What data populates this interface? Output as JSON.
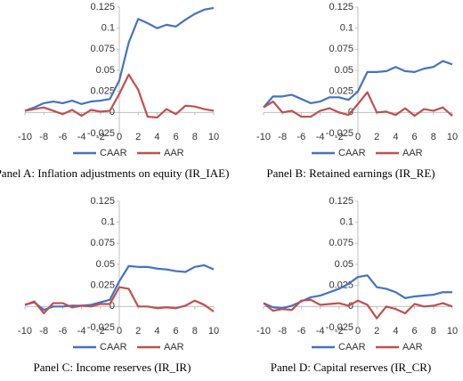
{
  "chart_data": [
    {
      "type": "line",
      "caption": "Panel A: Inflation adjustments on equity (IR_IAE)",
      "x": [
        -10,
        -9,
        -8,
        -7,
        -6,
        -5,
        -4,
        -3,
        -2,
        -1,
        0,
        1,
        2,
        3,
        4,
        5,
        6,
        7,
        8,
        9,
        10
      ],
      "series": [
        {
          "name": "CAAR",
          "color": "#4472c4",
          "values": [
            0.002,
            0.006,
            0.011,
            0.013,
            0.011,
            0.014,
            0.01,
            0.013,
            0.014,
            0.016,
            0.038,
            0.083,
            0.111,
            0.106,
            0.1,
            0.104,
            0.102,
            0.11,
            0.117,
            0.122,
            0.124
          ]
        },
        {
          "name": "AAR",
          "color": "#c0504d",
          "values": [
            0.002,
            0.004,
            0.006,
            0.002,
            -0.002,
            0.003,
            -0.004,
            0.003,
            0.001,
            0.002,
            0.022,
            0.045,
            0.027,
            -0.005,
            -0.006,
            0.004,
            -0.002,
            0.008,
            0.007,
            0.004,
            0.002
          ]
        }
      ],
      "xlim": [
        -10,
        10
      ],
      "xticks": [
        -10,
        -8,
        -6,
        -4,
        -2,
        0,
        2,
        4,
        6,
        8,
        10
      ],
      "ylim": [
        -0.025,
        0.125
      ],
      "yticks": [
        -0.025,
        0,
        0.025,
        0.05,
        0.075,
        0.1,
        0.125
      ]
    },
    {
      "type": "line",
      "caption": "Panel B: Retained earnings (IR_RE)",
      "x": [
        -10,
        -9,
        -8,
        -7,
        -6,
        -5,
        -4,
        -3,
        -2,
        -1,
        0,
        1,
        2,
        3,
        4,
        5,
        6,
        7,
        8,
        9,
        10
      ],
      "series": [
        {
          "name": "CAAR",
          "color": "#4472c4",
          "values": [
            0.006,
            0.019,
            0.019,
            0.021,
            0.016,
            0.011,
            0.013,
            0.018,
            0.018,
            0.015,
            0.025,
            0.048,
            0.048,
            0.049,
            0.054,
            0.049,
            0.048,
            0.052,
            0.054,
            0.061,
            0.057
          ]
        },
        {
          "name": "AAR",
          "color": "#c0504d",
          "values": [
            0.006,
            0.013,
            0.0,
            0.002,
            -0.005,
            -0.005,
            0.002,
            0.005,
            0.0,
            -0.003,
            0.01,
            0.024,
            0.0,
            0.001,
            -0.003,
            0.005,
            -0.004,
            0.004,
            0.002,
            0.006,
            -0.004
          ]
        }
      ],
      "xlim": [
        -10,
        10
      ],
      "xticks": [
        -10,
        -8,
        -6,
        -4,
        -2,
        0,
        2,
        4,
        6,
        8,
        10
      ],
      "ylim": [
        -0.025,
        0.125
      ],
      "yticks": [
        -0.025,
        0,
        0.025,
        0.05,
        0.075,
        0.1,
        0.125
      ]
    },
    {
      "type": "line",
      "caption": "Panel C: Income reserves (IR_IR)",
      "x": [
        -10,
        -9,
        -8,
        -7,
        -6,
        -5,
        -4,
        -3,
        -2,
        -1,
        0,
        1,
        2,
        3,
        4,
        5,
        6,
        7,
        8,
        9,
        10
      ],
      "series": [
        {
          "name": "CAAR",
          "color": "#4472c4",
          "values": [
            0.002,
            0.005,
            -0.004,
            0.0,
            0.0,
            0.001,
            0.001,
            0.002,
            0.005,
            0.008,
            0.03,
            0.048,
            0.047,
            0.047,
            0.045,
            0.044,
            0.042,
            0.041,
            0.047,
            0.049,
            0.044
          ]
        },
        {
          "name": "AAR",
          "color": "#c0504d",
          "values": [
            0.002,
            0.006,
            -0.008,
            0.004,
            0.004,
            -0.001,
            0.001,
            0.0,
            0.003,
            0.003,
            0.023,
            0.021,
            0.0,
            0.0,
            -0.002,
            -0.001,
            -0.002,
            0.001,
            0.007,
            0.002,
            -0.006
          ]
        }
      ],
      "xlim": [
        -10,
        10
      ],
      "xticks": [
        -10,
        -8,
        -6,
        -4,
        -2,
        0,
        2,
        4,
        6,
        8,
        10
      ],
      "ylim": [
        -0.025,
        0.125
      ],
      "yticks": [
        -0.025,
        0,
        0.025,
        0.05,
        0.075,
        0.1,
        0.125
      ]
    },
    {
      "type": "line",
      "caption": "Panel D: Capital reserves (IR_CR)",
      "x": [
        -10,
        -9,
        -8,
        -7,
        -6,
        -5,
        -4,
        -3,
        -2,
        -1,
        0,
        1,
        2,
        3,
        4,
        5,
        6,
        7,
        8,
        9,
        10
      ],
      "series": [
        {
          "name": "CAAR",
          "color": "#4472c4",
          "values": [
            0.004,
            -0.001,
            -0.002,
            0.001,
            0.006,
            0.011,
            0.013,
            0.017,
            0.021,
            0.027,
            0.035,
            0.037,
            0.023,
            0.021,
            0.017,
            0.01,
            0.012,
            0.013,
            0.014,
            0.017,
            0.017
          ]
        },
        {
          "name": "AAR",
          "color": "#c0504d",
          "values": [
            0.004,
            -0.005,
            -0.003,
            -0.004,
            0.007,
            0.008,
            0.002,
            0.003,
            0.004,
            0.001,
            0.007,
            0.002,
            -0.014,
            0.0,
            -0.003,
            -0.008,
            0.003,
            0.0,
            0.001,
            0.004,
            0.0
          ]
        }
      ],
      "xlim": [
        -10,
        10
      ],
      "xticks": [
        -10,
        -8,
        -6,
        -4,
        -2,
        0,
        2,
        4,
        6,
        8,
        10
      ],
      "ylim": [
        -0.025,
        0.125
      ],
      "yticks": [
        -0.025,
        0,
        0.025,
        0.05,
        0.075,
        0.1,
        0.125
      ]
    }
  ]
}
